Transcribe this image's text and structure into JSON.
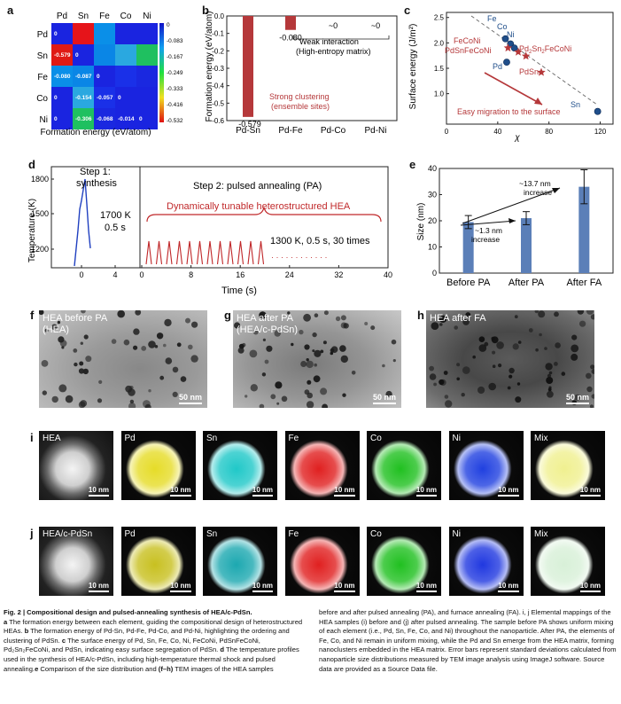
{
  "panel_letters": {
    "a": "a",
    "b": "b",
    "c": "c",
    "d": "d",
    "e": "e",
    "f": "f",
    "g": "g",
    "h": "h",
    "i": "i",
    "j": "j"
  },
  "panel_a": {
    "elements": [
      "Pd",
      "Sn",
      "Fe",
      "Co",
      "Ni"
    ],
    "cells": [
      [
        "0",
        "",
        "",
        "",
        ""
      ],
      [
        "-0.579",
        "0",
        "",
        "",
        ""
      ],
      [
        "-0.080",
        "-0.087",
        "0",
        "",
        ""
      ],
      [
        "0",
        "-0.154",
        "-0.057",
        "0",
        ""
      ],
      [
        "0",
        "-0.306",
        "-0.068",
        "-0.014",
        "0"
      ]
    ],
    "cell_colors": [
      [
        "#1a24e0",
        "#e6141a",
        "#0a8fe8",
        "#1a24e0",
        "#1a24e0"
      ],
      [
        "#e01a14",
        "#1a24e0",
        "#0a86e6",
        "#2aa8e0",
        "#1fc060"
      ],
      [
        "#0a8fe8",
        "#0a86e6",
        "#1a24e0",
        "#1a30e8",
        "#1a28e0"
      ],
      [
        "#1a24e0",
        "#2aa8e0",
        "#1a30e8",
        "#1a24e0",
        "#1a24e0"
      ],
      [
        "#1a24e0",
        "#1fc060",
        "#1a28e0",
        "#1a24e0",
        "#1a24e0"
      ]
    ],
    "colorbar_ticks": [
      "0",
      "-0.083",
      "-0.167",
      "-0.249",
      "-0.333",
      "-0.416",
      "-0.532"
    ],
    "xlabel": "Formation energy (eV/atom)"
  },
  "panel_b": {
    "chart_data": {
      "type": "bar",
      "categories": [
        "Pd-Sn",
        "Pd-Fe",
        "Pd-Co",
        "Pd-Ni"
      ],
      "values": [
        -0.579,
        -0.08,
        0,
        0
      ],
      "value_labels": [
        "-0.579",
        "-0.080",
        "~0",
        "~0"
      ],
      "ylabel": "Formation energy (eV/atom)",
      "ylim": [
        -0.6,
        0.0
      ],
      "yticks": [
        "0.0",
        "-0.1",
        "-0.2",
        "-0.3",
        "-0.4",
        "-0.5",
        "-0.6"
      ],
      "annotations": [
        "Weak interaction",
        "(High-entropy matrix)",
        "Strong clustering",
        "(ensemble sites)"
      ]
    }
  },
  "panel_c": {
    "chart_data": {
      "type": "scatter",
      "xlabel": "χ",
      "ylabel": "Surface energy (J/m²)",
      "xlim": [
        0,
        130
      ],
      "ylim": [
        0.4,
        2.6
      ],
      "xticks": [
        "0",
        "40",
        "80",
        "120"
      ],
      "yticks": [
        "1.0",
        "1.5",
        "2.0",
        "2.5"
      ],
      "points": [
        {
          "name": "Fe",
          "x": 46,
          "y": 2.08,
          "kind": "dot"
        },
        {
          "name": "Co",
          "x": 50,
          "y": 1.98,
          "kind": "dot"
        },
        {
          "name": "Ni",
          "x": 53,
          "y": 1.9,
          "kind": "dot"
        },
        {
          "name": "Pd",
          "x": 47,
          "y": 1.62,
          "kind": "dot"
        },
        {
          "name": "Sn",
          "x": 118,
          "y": 0.65,
          "kind": "dot"
        },
        {
          "name": "FeCoNi",
          "x": 48,
          "y": 1.9,
          "kind": "star"
        },
        {
          "name": "PdSnFeCoNi",
          "x": 56,
          "y": 1.82,
          "kind": "star"
        },
        {
          "name": "Pd2Sn2FeCoNi",
          "x": 62,
          "y": 1.74,
          "kind": "star"
        },
        {
          "name": "PdSn",
          "x": 74,
          "y": 1.42,
          "kind": "star"
        }
      ],
      "labels": {
        "fe": "Fe",
        "co": "Co",
        "ni": "Ni",
        "feconi": "FeCoNi",
        "pdsnfeconi": "PdSnFeCoNi",
        "pd": "Pd",
        "pd2": "Pd",
        "sub2a": "2",
        "sn2": "Sn",
        "sub2b": "2",
        "feconi2": "FeCoNi",
        "pdsn": "PdSn",
        "sn": "Sn"
      },
      "annotation": "Easy migration to the surface"
    }
  },
  "panel_d": {
    "ylabel": "Temperature (K)",
    "xlabel": "Time (s)",
    "yticks": [
      "1800",
      "1500",
      "1200"
    ],
    "left_xticks": [
      "0",
      "4"
    ],
    "right_xticks": [
      "0",
      "8",
      "16",
      "24",
      "32",
      "40"
    ],
    "step1_line1": "Step 1:",
    "step1_line2": "synthesis",
    "step1_temp": "1700 K",
    "step1_time": "0.5 s",
    "step2": "Step 2: pulsed annealing (PA)",
    "tunable": "Dynamically tunable heterostructured HEA",
    "pulse_note": "1300 K, 0.5 s, 30 times",
    "ellipsis": "· · · · · · · · · · · ·"
  },
  "panel_e": {
    "chart_data": {
      "type": "bar",
      "categories": [
        "Before PA",
        "After PA",
        "After FA"
      ],
      "values": [
        19.5,
        21,
        33
      ],
      "errors": [
        2.5,
        2.5,
        6.5
      ],
      "ylabel": "Size (nm)",
      "ylim": [
        0,
        40
      ],
      "yticks": [
        "0",
        "10",
        "20",
        "30",
        "40"
      ],
      "annotations": [
        "~1.3 nm",
        "increase",
        "~13.7 nm",
        "increase"
      ]
    }
  },
  "tem": {
    "f": {
      "label1": "HEA before PA",
      "label2": "(HEA)",
      "scale": "50 nm"
    },
    "g": {
      "label1": "HEA after PA",
      "label2": "(HEA/c-PdSn)",
      "scale": "50 nm"
    },
    "h": {
      "label1": "HEA after FA",
      "label2": "",
      "scale": "50 nm"
    }
  },
  "maps": {
    "row_i": [
      {
        "name": "HEA",
        "color": "#e8e8e8",
        "scale": "10 nm"
      },
      {
        "name": "Pd",
        "color": "#e6dc28",
        "scale": "10 nm"
      },
      {
        "name": "Sn",
        "color": "#20c8c8",
        "scale": "10 nm"
      },
      {
        "name": "Fe",
        "color": "#e02020",
        "scale": "10 nm"
      },
      {
        "name": "Co",
        "color": "#20c020",
        "scale": "10 nm"
      },
      {
        "name": "Ni",
        "color": "#2040e0",
        "scale": "10 nm"
      },
      {
        "name": "Mix",
        "color": "#f0f090",
        "scale": "10 nm"
      }
    ],
    "row_j": [
      {
        "name": "HEA/c-PdSn",
        "color": "#e8e8e8",
        "scale": "10 nm"
      },
      {
        "name": "Pd",
        "color": "#c8c020",
        "scale": "10 nm"
      },
      {
        "name": "Sn",
        "color": "#1ca8b0",
        "scale": "10 nm"
      },
      {
        "name": "Fe",
        "color": "#e02020",
        "scale": "10 nm"
      },
      {
        "name": "Co",
        "color": "#20c020",
        "scale": "10 nm"
      },
      {
        "name": "Ni",
        "color": "#2038e0",
        "scale": "10 nm"
      },
      {
        "name": "Mix",
        "color": "#d8f0d8",
        "scale": "10 nm"
      }
    ]
  },
  "caption": {
    "left": [
      {
        "bold": "Fig. 2 | Compositional design and pulsed-annealing synthesis of HEA/c-PdSn.",
        "text": ""
      },
      {
        "bold": "a",
        "text": " The formation energy between each element, guiding the compositional design of heterostructured HEAs. "
      },
      {
        "bold": "b",
        "text": " The formation energy of Pd-Sn, Pd-Fe, Pd-Co, and Pd-Ni, highlighting the ordering and clustering of PdSn. "
      },
      {
        "bold": "c",
        "text": " The surface energy of Pd, Sn, Fe, Co, Ni, FeCoNi, PdSnFeCoNi, Pd₂Sn₂FeCoNi, and PdSn, indicating easy surface segregation of PdSn. "
      },
      {
        "bold": "d",
        "text": " The temperature profiles used in the synthesis of HEA/c-PdSn, including high-temperature thermal shock and pulsed annealing."
      },
      {
        "bold": "e",
        "text": " Comparison of the size distribution and "
      },
      {
        "bold": "(f–h)",
        "text": " TEM images of the HEA samples"
      }
    ],
    "right": "before and after pulsed annealing (PA), and furnace annealing (FA). i, j Elemental mappings of the HEA samples (i) before and (j) after pulsed annealing. The sample before PA shows uniform mixing of each element (i.e., Pd, Sn, Fe, Co, and Ni) throughout the nanoparticle. After PA, the elements of Fe, Co, and Ni remain in uniform mixing, while the Pd and Sn emerge from the HEA matrix, forming nanoclusters embedded in the HEA matrix. Error bars represent standard deviations calculated from nanoparticle size distributions measured by TEM image analysis using ImageJ software. Source data are provided as a Source Data file."
  }
}
